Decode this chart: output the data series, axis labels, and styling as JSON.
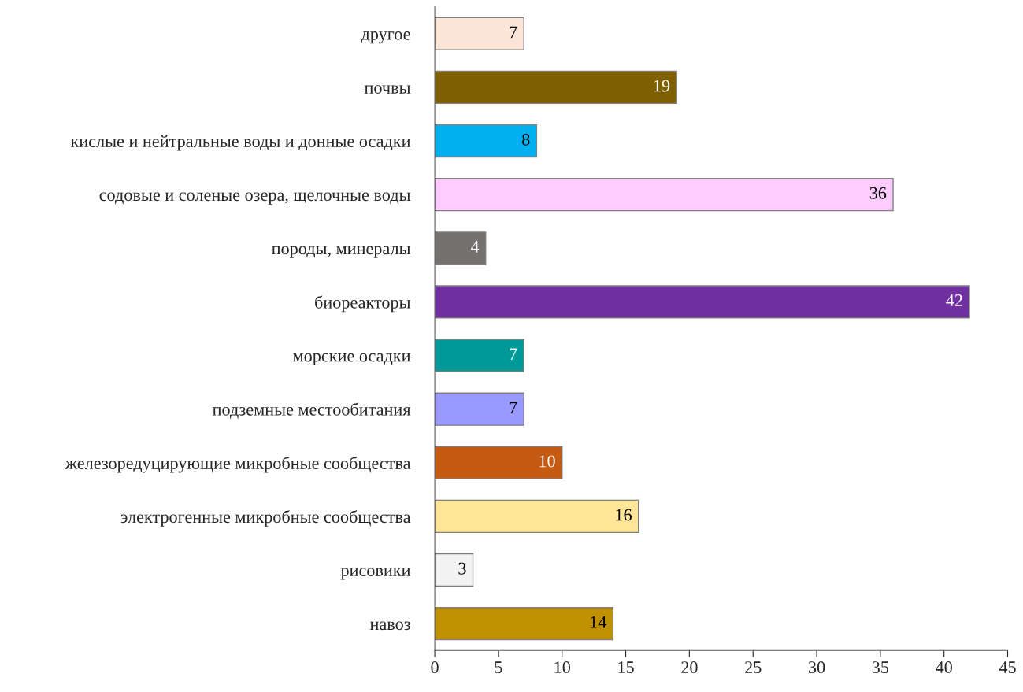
{
  "chart_data": {
    "type": "bar",
    "orientation": "horizontal",
    "categories": [
      "другое",
      "почвы",
      "кислые и нейтральные воды и донные осадки",
      "содовые и соленые озера, щелочные воды",
      "породы, минералы",
      "биореакторы",
      "морские осадки",
      "подземные местообитания",
      "железоредуцирующие микробные сообщества",
      "электрогенные микробные сообщества",
      "рисовики",
      "навоз"
    ],
    "values": [
      7,
      19,
      8,
      36,
      4,
      42,
      7,
      7,
      10,
      16,
      3,
      14
    ],
    "colors": [
      "#fbe5d6",
      "#7f6000",
      "#00b0f0",
      "#ffccff",
      "#767171",
      "#7030a0",
      "#009999",
      "#9999ff",
      "#c55a11",
      "#ffe699",
      "#f2f2f2",
      "#bf9000"
    ],
    "xlim": [
      0,
      45
    ],
    "xticks": [
      0,
      5,
      10,
      15,
      20,
      25,
      30,
      35,
      40,
      45
    ],
    "data_labels": true,
    "grid": false,
    "legend": false
  }
}
